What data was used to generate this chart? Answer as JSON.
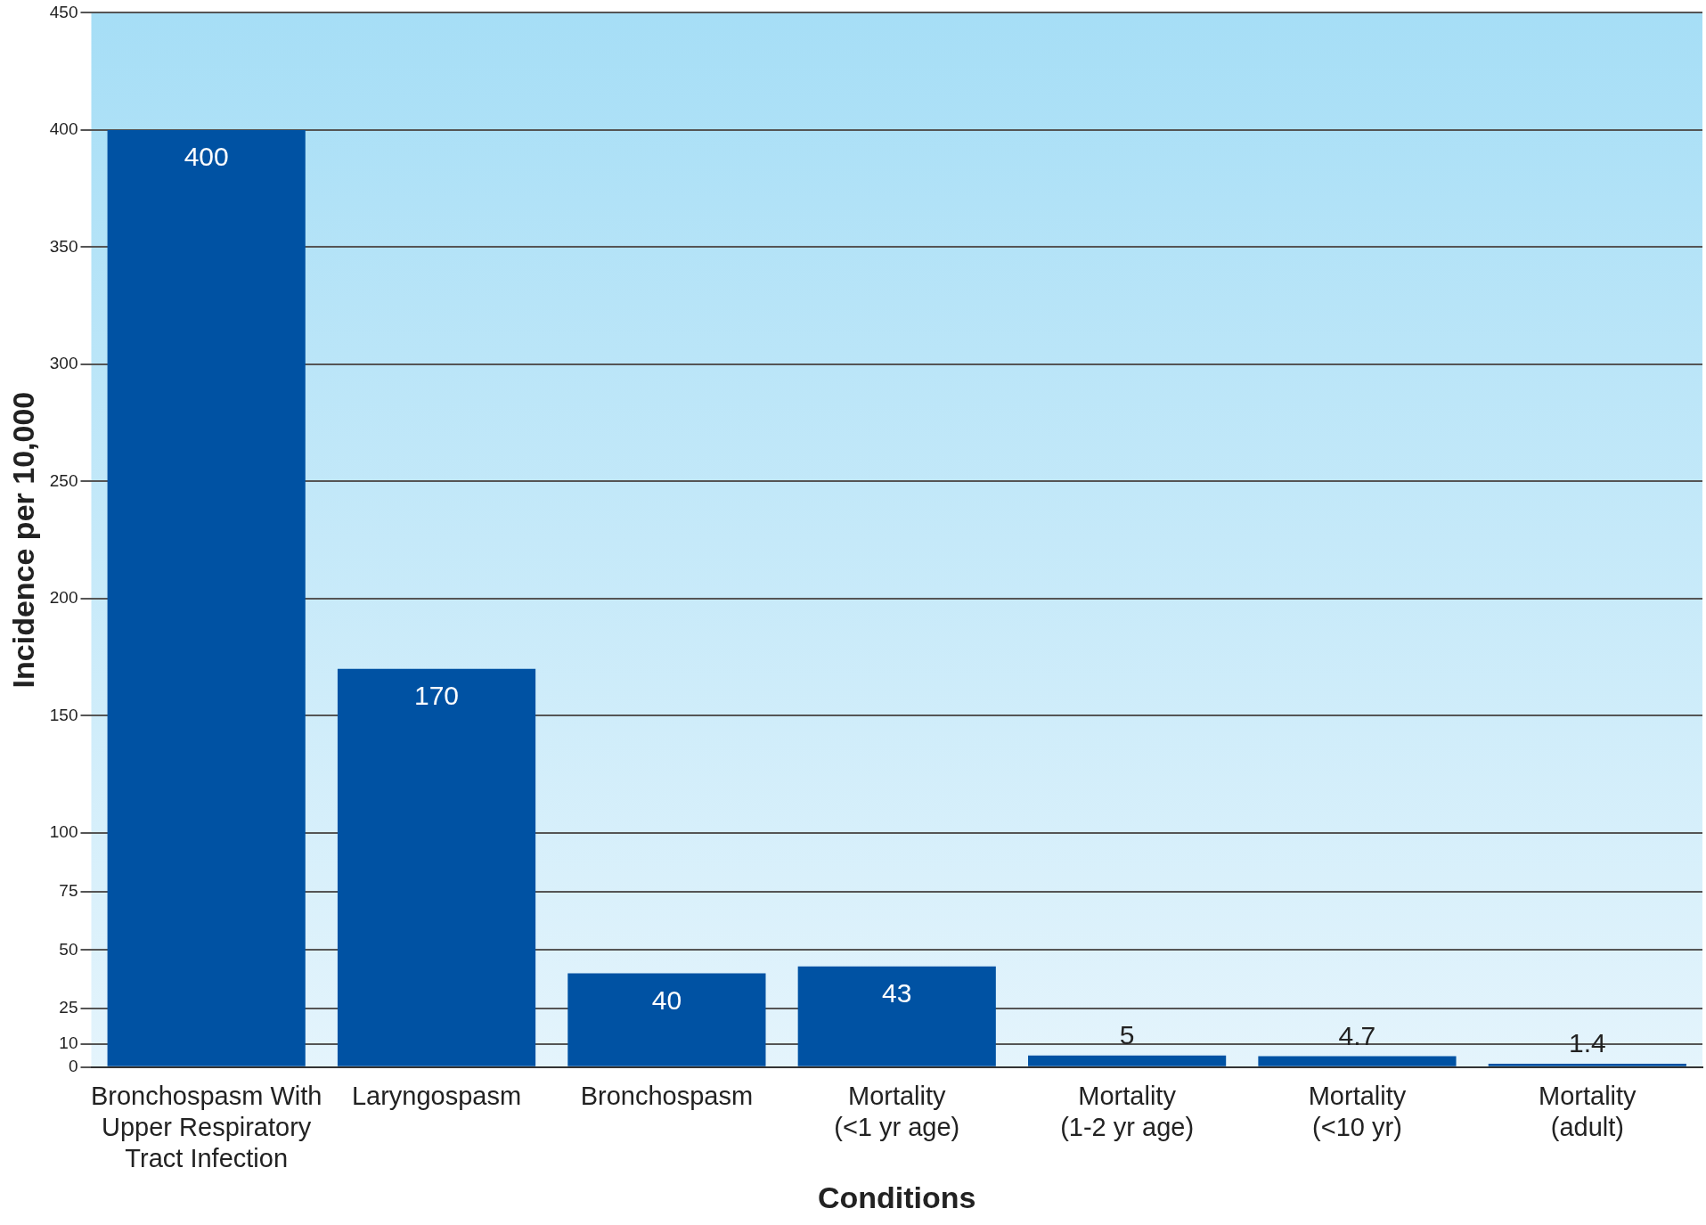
{
  "chart_data": {
    "type": "bar",
    "xlabel": "Conditions",
    "ylabel": "Incidence per 10,000",
    "categories": [
      "Bronchospasm With Upper Respiratory Tract Infection",
      "Laryngospasm",
      "Bronchospasm",
      "Mortality (<1 yr age)",
      "Mortality (1-2 yr age)",
      "Mortality (<10 yr)",
      "Mortality (adult)"
    ],
    "values": [
      400,
      170,
      40,
      43,
      5,
      4.7,
      1.4
    ],
    "color": "#0052a3",
    "ylim": [
      0,
      450
    ],
    "yticks": [
      0,
      10,
      25,
      50,
      75,
      100,
      150,
      200,
      250,
      300,
      350,
      400,
      450
    ],
    "grid": "y",
    "data_labels": true
  }
}
